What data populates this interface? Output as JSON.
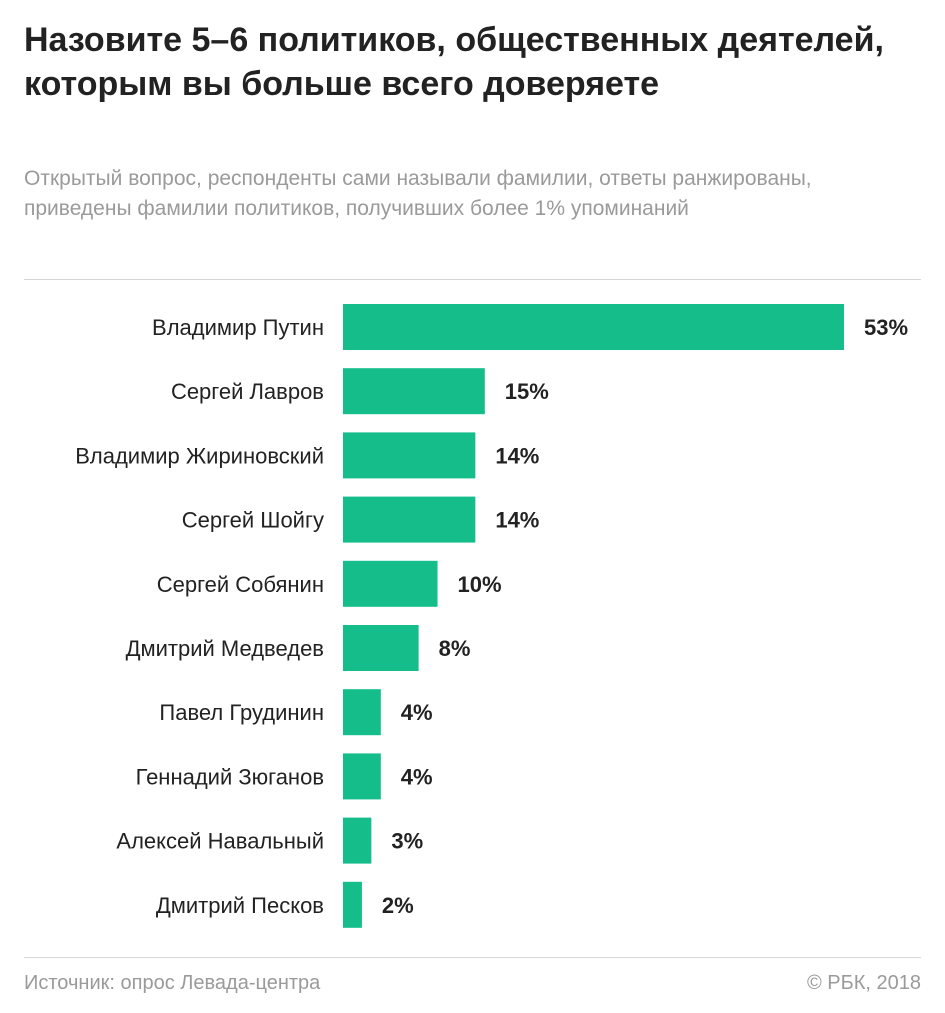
{
  "header": {
    "title": "Назовите 5–6 политиков, общественных деятелей, которым вы больше всего доверяете",
    "subtitle": "Открытый вопрос, респонденты сами называли фамилии, ответы ранжированы, приведены фамилии политиков, получивших более 1% упоминаний"
  },
  "footer": {
    "source": "Источник: опрос Левада-центра",
    "copyright": "© РБК, 2018"
  },
  "chart_data": {
    "type": "bar",
    "orientation": "horizontal",
    "categories": [
      "Владимир Путин",
      "Сергей Лавров",
      "Владимир Жириновский",
      "Сергей Шойгу",
      "Сергей Собянин",
      "Дмитрий Медведев",
      "Павел Грудинин",
      "Геннадий Зюганов",
      "Алексей Навальный",
      "Дмитрий Песков"
    ],
    "values": [
      53,
      15,
      14,
      14,
      10,
      8,
      4,
      4,
      3,
      2
    ],
    "value_labels": [
      "53%",
      "15%",
      "14%",
      "14%",
      "10%",
      "8%",
      "4%",
      "4%",
      "3%",
      "2%"
    ],
    "unit": "%",
    "xlim": [
      0,
      53
    ],
    "grid": false,
    "colors": {
      "bar": "#14bd8a"
    }
  }
}
